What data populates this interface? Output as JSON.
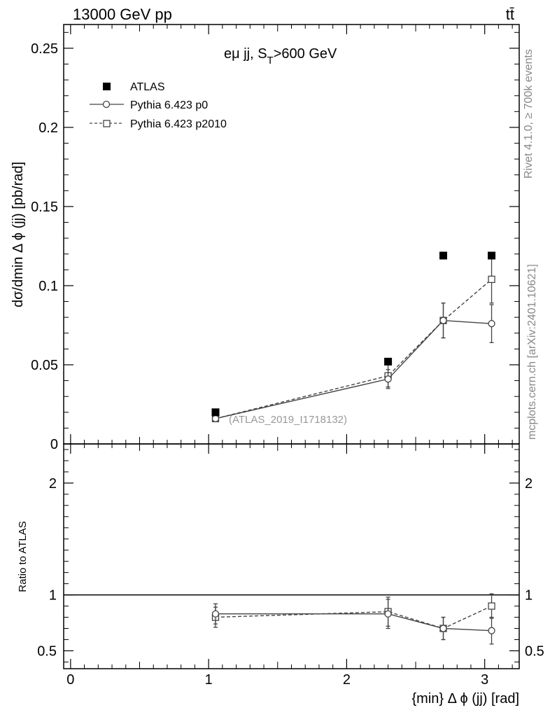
{
  "header": {
    "left_label": "13000 GeV pp",
    "right_label": "tt̄"
  },
  "side_labels": {
    "rivet": "Rivet 4.1.0, ≥ 700k events",
    "mcplots": "mcplots.cern.ch [arXiv:2401.10621]"
  },
  "chart_data": [
    {
      "type": "scatter",
      "title": "eμ jj, S_T>600 GeV",
      "title_main": "eμ jj, S",
      "title_sub": "T",
      "title_tail": ">600 GeV",
      "analysis_label": "(ATLAS_2019_I1718132)",
      "xlabel": "{min} Δ ϕ (jj) [rad]",
      "ylabel": "dσ/dmin Δ ϕ (jj) [pb/rad]",
      "xlim": [
        -0.05,
        3.25
      ],
      "ylim": [
        0,
        0.265
      ],
      "x_ticks": [
        0,
        1,
        2,
        3
      ],
      "x_tick_labels": [
        "0",
        "1",
        "2",
        "3"
      ],
      "y_ticks": [
        0,
        0.05,
        0.1,
        0.15,
        0.2,
        0.25
      ],
      "y_tick_labels": [
        "0",
        "0.05",
        "0.1",
        "0.15",
        "0.2",
        "0.25"
      ],
      "legend_position": "top-left",
      "series": [
        {
          "name": "ATLAS",
          "style": "filled-square",
          "x": [
            1.05,
            2.3,
            2.7,
            3.05
          ],
          "y": [
            0.02,
            0.052,
            0.119,
            0.119
          ]
        },
        {
          "name": "Pythia 6.423 p0",
          "style": "solid-circle",
          "x": [
            1.05,
            2.3,
            2.7,
            3.05
          ],
          "y": [
            0.016,
            0.041,
            0.078,
            0.076
          ],
          "err": [
            0.002,
            0.006,
            0.011,
            0.012
          ]
        },
        {
          "name": "Pythia 6.423 p2010",
          "style": "dashed-square",
          "x": [
            1.05,
            2.3,
            2.7,
            3.05
          ],
          "y": [
            0.016,
            0.043,
            0.078,
            0.104
          ],
          "err": [
            0.002,
            0.007,
            0.011,
            0.015
          ]
        }
      ]
    },
    {
      "type": "scatter",
      "ylabel": "Ratio to ATLAS",
      "xlim": [
        -0.05,
        3.25
      ],
      "ylim": [
        0.34,
        2.35
      ],
      "y_ticks": [
        0.5,
        1,
        2
      ],
      "y_tick_labels": [
        "0.5",
        "1",
        "2"
      ],
      "reference_line": 1,
      "series": [
        {
          "name": "Pythia 6.423 p0",
          "style": "solid-circle",
          "x": [
            1.05,
            2.3,
            2.7,
            3.05
          ],
          "y": [
            0.83,
            0.83,
            0.7,
            0.68
          ],
          "err": [
            0.09,
            0.13,
            0.1,
            0.12
          ]
        },
        {
          "name": "Pythia 6.423 p2010",
          "style": "dashed-square",
          "x": [
            1.05,
            2.3,
            2.7,
            3.05
          ],
          "y": [
            0.8,
            0.85,
            0.7,
            0.9
          ],
          "err": [
            0.09,
            0.13,
            0.1,
            0.11
          ]
        }
      ]
    }
  ]
}
